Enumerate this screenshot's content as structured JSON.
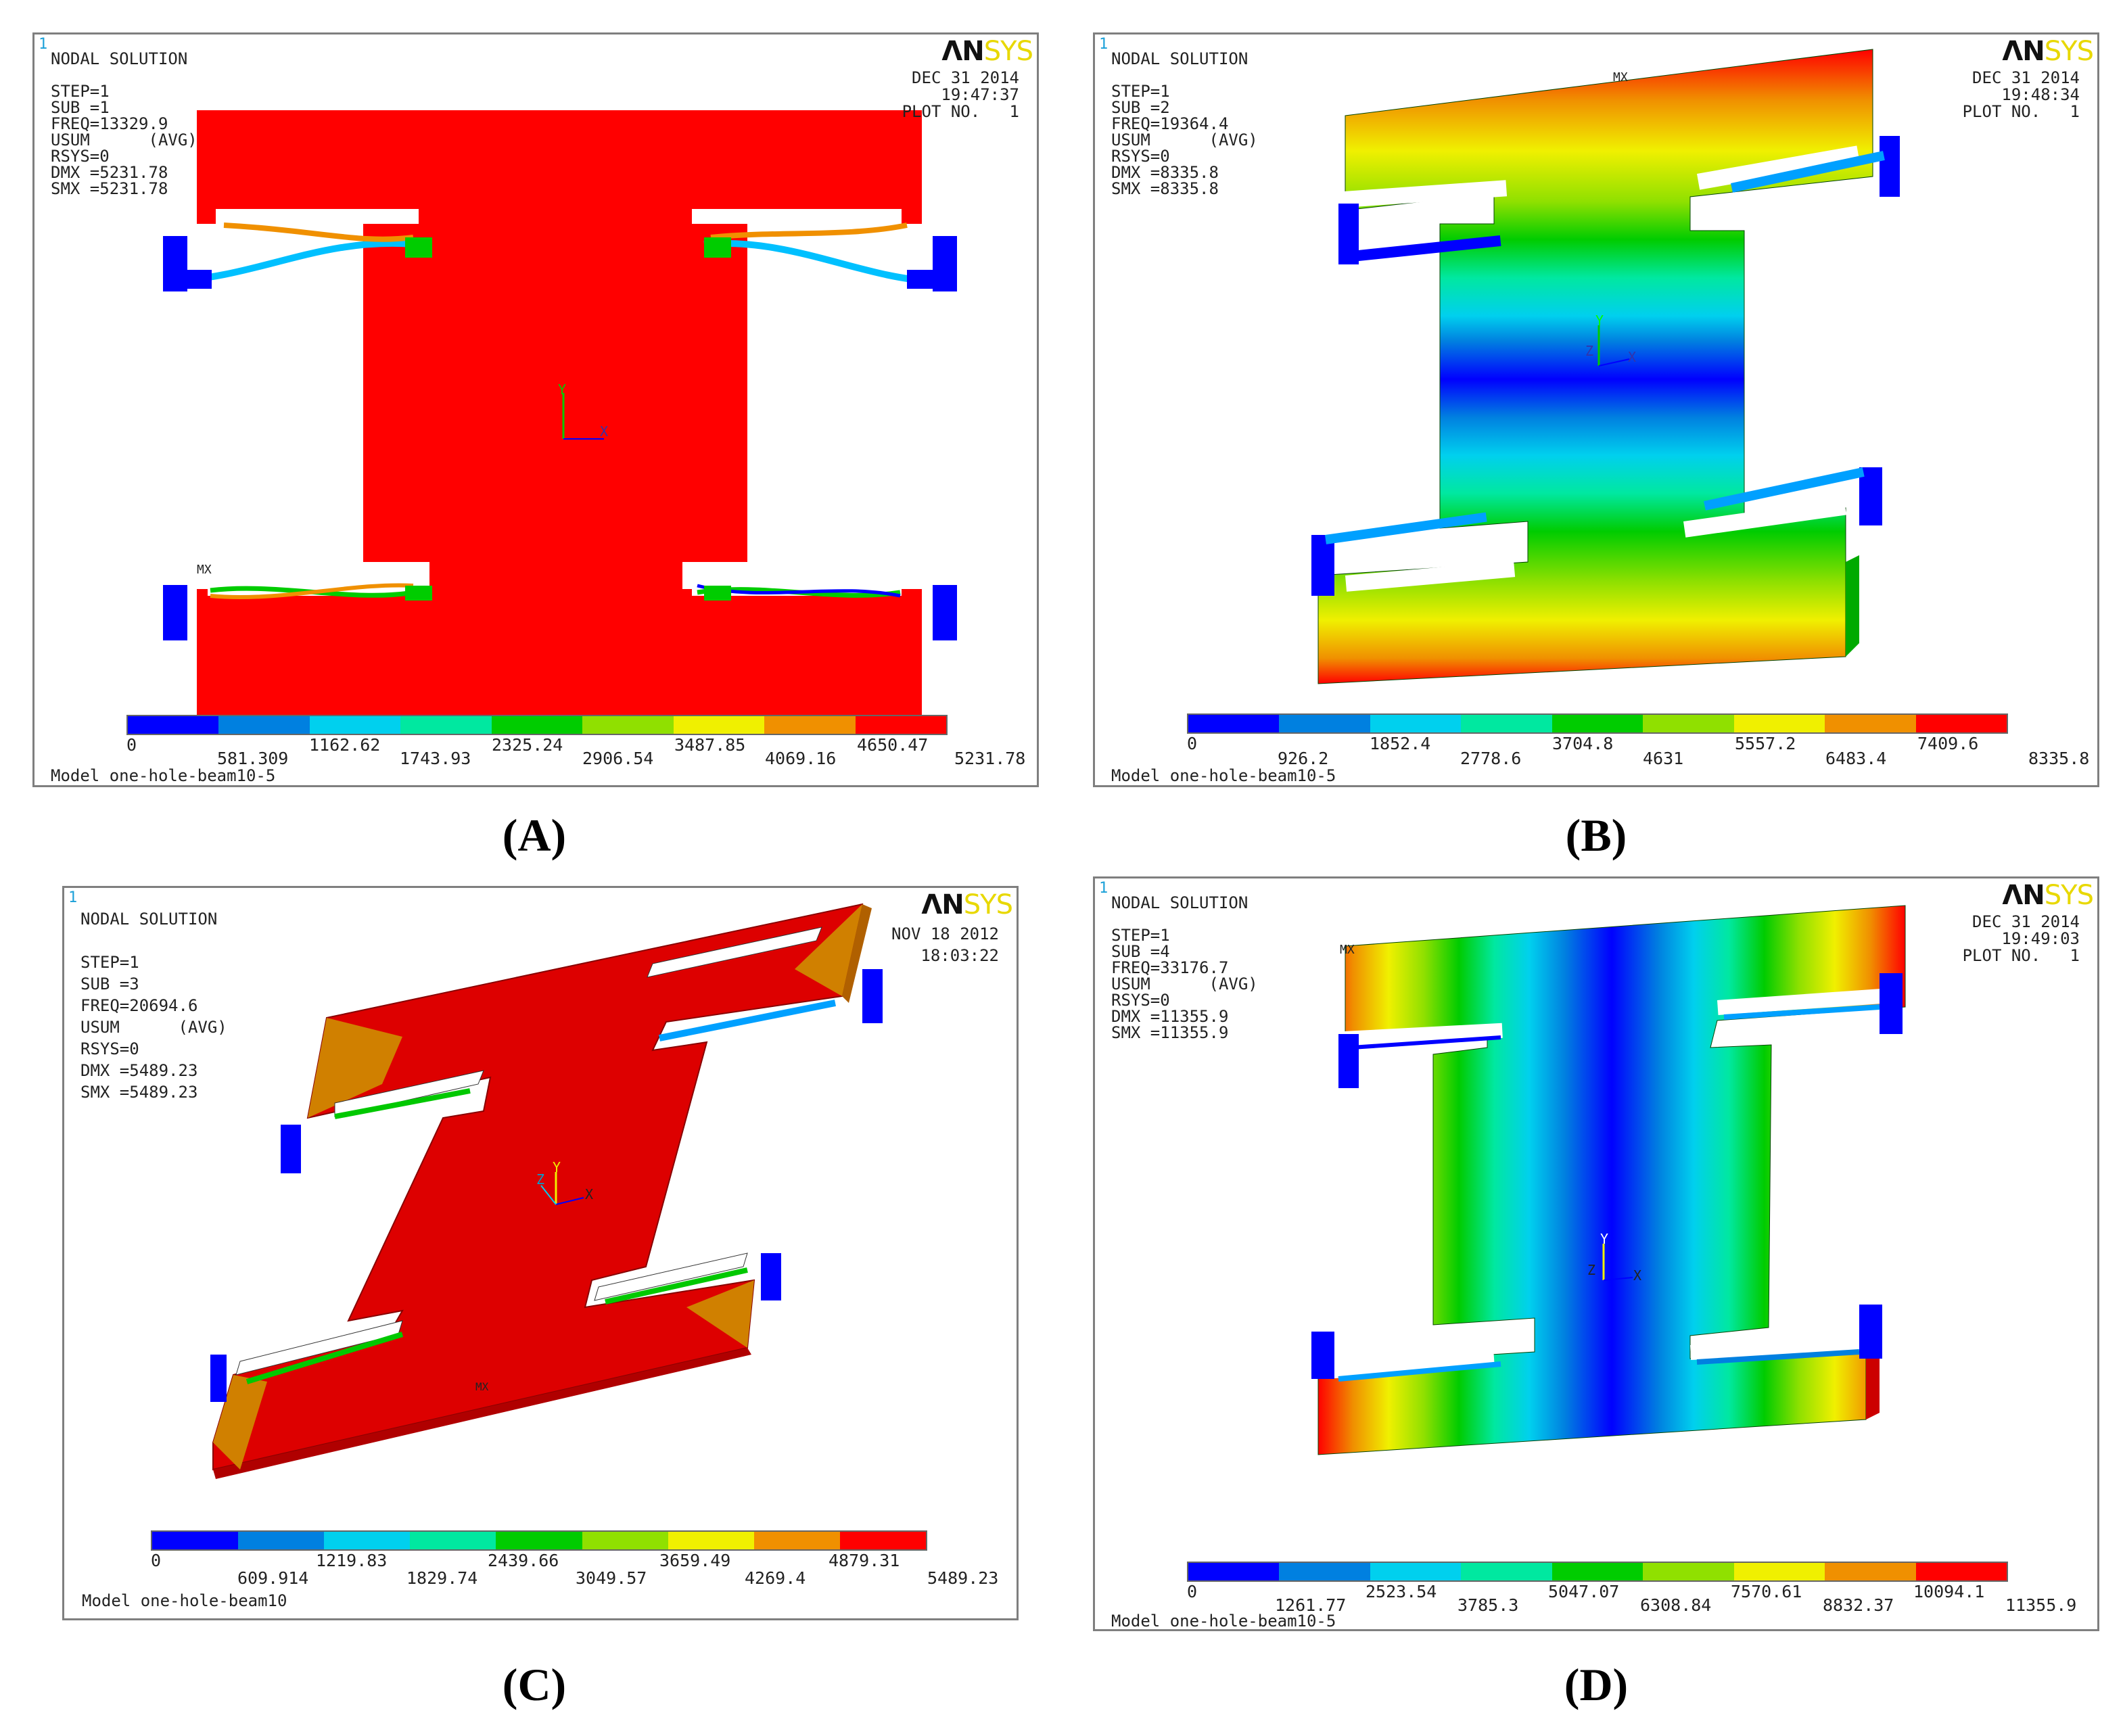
{
  "palette": [
    "#0000ff",
    "#0080e0",
    "#00d0ee",
    "#00e8a0",
    "#00cc00",
    "#90e000",
    "#f0f000",
    "#f09000",
    "#ff0000"
  ],
  "panels": [
    {
      "id": "A",
      "index": "1",
      "logo_a": "ΛN",
      "logo_b": "SYS",
      "info": "NODAL SOLUTION\n\nSTEP=1\nSUB =1\nFREQ=13329.9\nUSUM      (AVG)\nRSYS=0\nDMX =5231.78\nSMX =5231.78",
      "date": "DEC 31 2014",
      "time": "19:47:37",
      "plot": "PLOT NO.   1",
      "model": "Model one-hole-beam10-5",
      "mx": "MX",
      "legend_top": [
        "0",
        "1162.62",
        "2325.24",
        "3487.85",
        "4650.47"
      ],
      "legend_bottom": [
        "581.309",
        "1743.93",
        "2906.54",
        "4069.16",
        "5231.78"
      ],
      "caption": "(A)"
    },
    {
      "id": "B",
      "index": "1",
      "logo_a": "ΛN",
      "logo_b": "SYS",
      "info": "NODAL SOLUTION\n\nSTEP=1\nSUB =2\nFREQ=19364.4\nUSUM      (AVG)\nRSYS=0\nDMX =8335.8\nSMX =8335.8",
      "date": "DEC 31 2014",
      "time": "19:48:34",
      "plot": "PLOT NO.   1",
      "model": "Model one-hole-beam10-5",
      "mx": "MX",
      "legend_top": [
        "0",
        "1852.4",
        "3704.8",
        "5557.2",
        "7409.6"
      ],
      "legend_bottom": [
        "926.2",
        "2778.6",
        "4631",
        "6483.4",
        "8335.8"
      ],
      "caption": "(B)"
    },
    {
      "id": "C",
      "index": "1",
      "logo_a": "ΛN",
      "logo_b": "SYS",
      "info": "NODAL SOLUTION\n\nSTEP=1\nSUB =3\nFREQ=20694.6\nUSUM      (AVG)\nRSYS=0\nDMX =5489.23\nSMX =5489.23",
      "date": "NOV 18 2012",
      "time": "18:03:22",
      "plot": "",
      "model": "Model one-hole-beam10",
      "mx": "MX",
      "legend_top": [
        "0",
        "1219.83",
        "2439.66",
        "3659.49",
        "4879.31"
      ],
      "legend_bottom": [
        "609.914",
        "1829.74",
        "3049.57",
        "4269.4",
        "5489.23"
      ],
      "caption": "(C)"
    },
    {
      "id": "D",
      "index": "1",
      "logo_a": "ΛN",
      "logo_b": "SYS",
      "info": "NODAL SOLUTION\n\nSTEP=1\nSUB =4\nFREQ=33176.7\nUSUM      (AVG)\nRSYS=0\nDMX =11355.9\nSMX =11355.9",
      "date": "DEC 31 2014",
      "time": "19:49:03",
      "plot": "PLOT NO.   1",
      "model": "Model one-hole-beam10-5",
      "mx": "MX",
      "legend_top": [
        "0",
        "2523.54",
        "5047.07",
        "7570.61",
        "10094.1"
      ],
      "legend_bottom": [
        "1261.77",
        "3785.3",
        "6308.84",
        "8832.37",
        "11355.9"
      ],
      "caption": "(D)"
    }
  ]
}
